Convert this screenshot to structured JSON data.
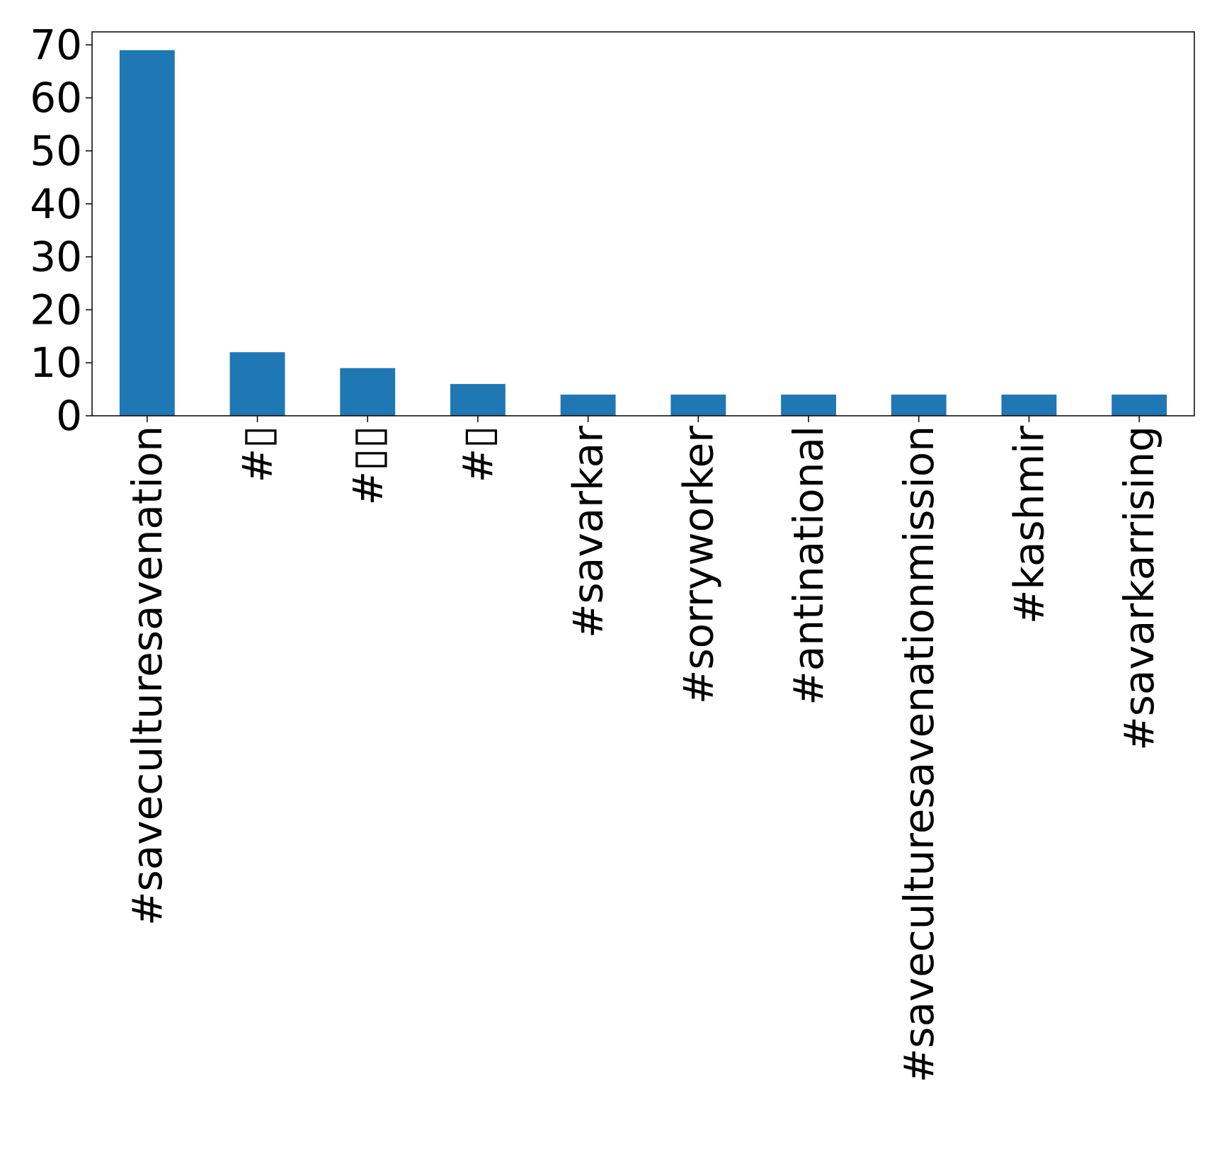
{
  "chart_data": {
    "type": "bar",
    "categories": [
      "#saveculturesavenation",
      "#▯",
      "#▯▯",
      "#▯",
      "#savarkar",
      "#sorryworker",
      "#antinational",
      "#saveculturesavenationmission",
      "#kashmir",
      "#savarkarrising"
    ],
    "values": [
      69,
      12,
      9,
      6,
      4,
      4,
      4,
      4,
      4,
      4
    ],
    "ylim": [
      0,
      72.45
    ],
    "yticks": [
      0,
      10,
      20,
      30,
      40,
      50,
      60,
      70
    ],
    "grid": false,
    "legend": "none",
    "bar_color": "#1f77b4"
  }
}
